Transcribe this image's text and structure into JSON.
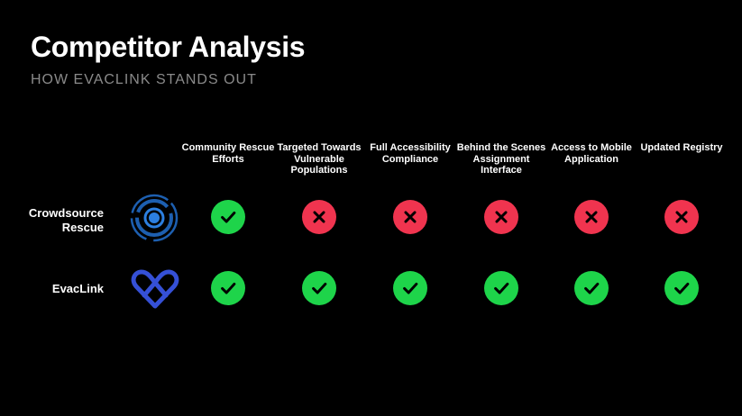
{
  "slide": {
    "title": "Competitor Analysis",
    "subtitle": "HOW EVACLINK STANDS OUT"
  },
  "columns": [
    {
      "label": "Community Rescue Efforts"
    },
    {
      "label": "Targeted Towards Vulnerable Populations"
    },
    {
      "label": "Full Accessibility Compliance"
    },
    {
      "label": "Behind the Scenes Assignment Interface"
    },
    {
      "label": "Access to Mobile Application"
    },
    {
      "label": "Updated Registry"
    }
  ],
  "rows": [
    {
      "name": "Crowdsource Rescue",
      "logo": "crowdsource-rescue-logo",
      "values": [
        true,
        false,
        false,
        false,
        false,
        false
      ]
    },
    {
      "name": "EvacLink",
      "logo": "evaclink-heart-logo",
      "values": [
        true,
        true,
        true,
        true,
        true,
        true
      ]
    }
  ],
  "colors": {
    "yes": "#1ed44a",
    "no": "#f0344f",
    "icon": "#000000",
    "subtitle": "#8a8a8a",
    "crowdsource_logo": "#1d5fb0",
    "evaclink_logo": "#3550d6"
  },
  "icons": {
    "yes": "check-icon",
    "no": "x-icon"
  }
}
